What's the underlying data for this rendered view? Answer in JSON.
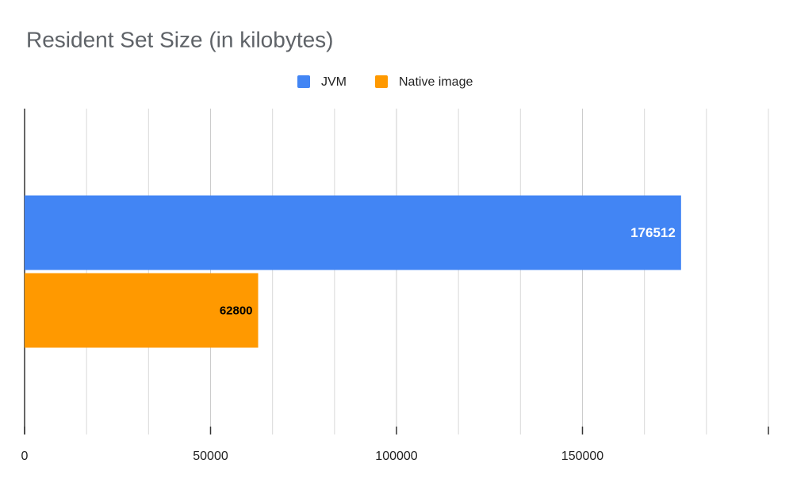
{
  "chart_data": {
    "type": "bar",
    "orientation": "horizontal",
    "title": "Resident Set Size (in kilobytes)",
    "categories": [
      null
    ],
    "series": [
      {
        "name": "JVM",
        "color": "#4285f4",
        "values": [
          176512
        ]
      },
      {
        "name": "Native image",
        "color": "#ff9900",
        "values": [
          62800
        ]
      }
    ],
    "xlim": [
      0,
      200000
    ],
    "xticks": [
      0,
      50000,
      100000,
      150000
    ],
    "grid": true,
    "legend": "top"
  }
}
